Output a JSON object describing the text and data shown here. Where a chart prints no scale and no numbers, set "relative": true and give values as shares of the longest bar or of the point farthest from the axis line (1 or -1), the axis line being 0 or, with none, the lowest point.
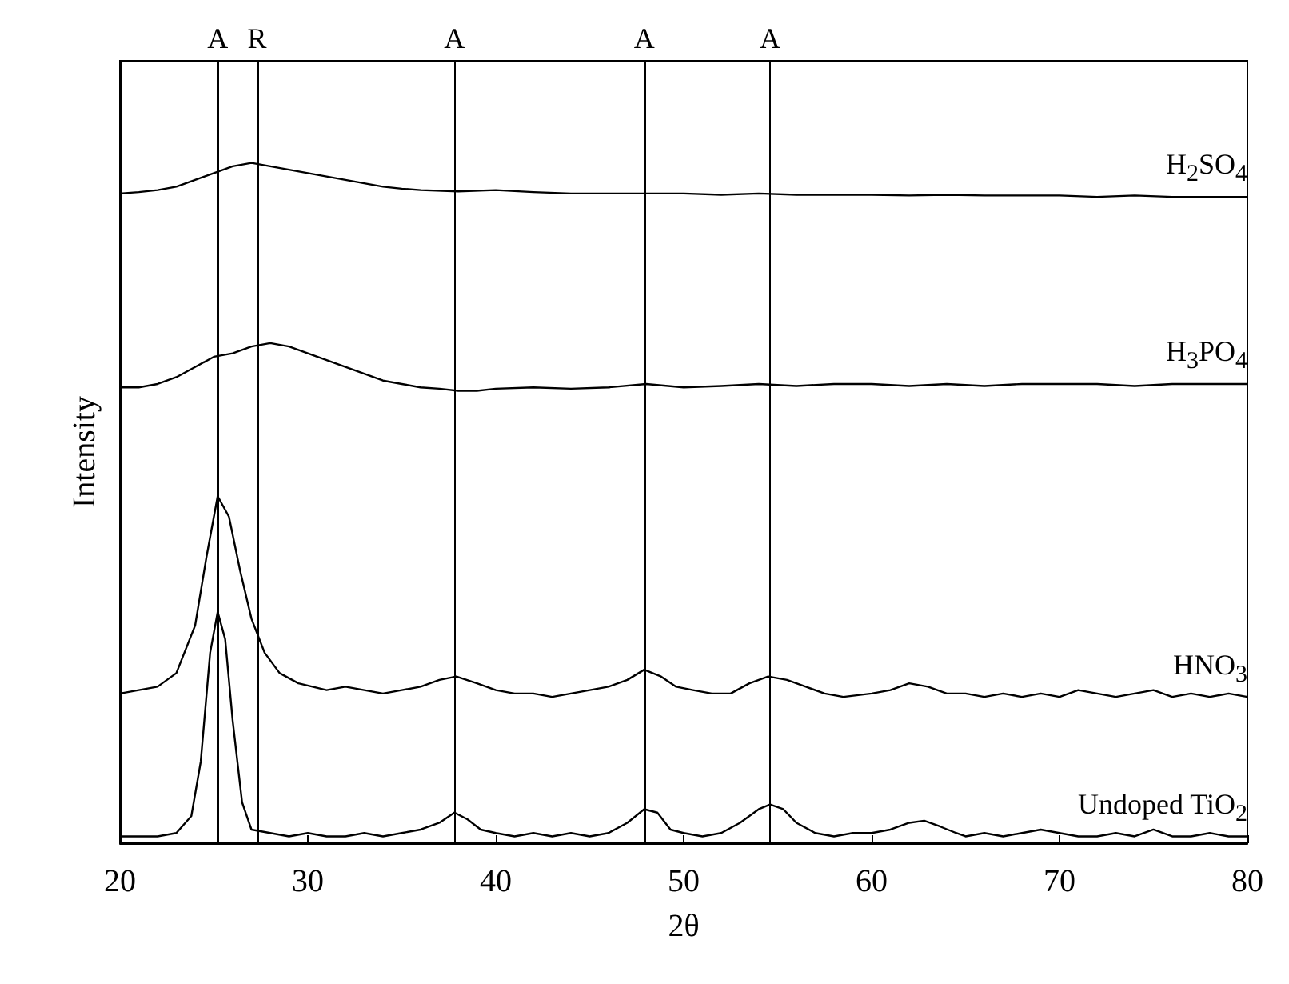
{
  "chart_data": {
    "type": "line",
    "xlabel": "2θ",
    "ylabel": "Intensity",
    "relative": true,
    "xlim": [
      20,
      80
    ],
    "xticks": [
      20,
      30,
      40,
      50,
      60,
      70,
      80
    ],
    "grid": false,
    "legend": false,
    "marker": "none",
    "line_style": "solid",
    "ref_lines": [
      {
        "axis": "x",
        "value": 25.2,
        "label": "A"
      },
      {
        "axis": "x",
        "value": 27.3,
        "label": "R"
      },
      {
        "axis": "x",
        "value": 37.8,
        "label": "A"
      },
      {
        "axis": "x",
        "value": 47.9,
        "label": "A"
      },
      {
        "axis": "x",
        "value": 54.6,
        "label": "A"
      }
    ],
    "series": [
      {
        "name": "H$_{2}$SO$_{4}$",
        "color": "#000000",
        "x": [
          20,
          21,
          22,
          23,
          24,
          25,
          26,
          27,
          28,
          29,
          30,
          31,
          32,
          33,
          34,
          35,
          36,
          38,
          40,
          42,
          44,
          46,
          48,
          50,
          52,
          54,
          56,
          58,
          60,
          62,
          64,
          66,
          68,
          70,
          72,
          74,
          76,
          78,
          80
        ],
        "values": [
          0.955,
          0.957,
          0.96,
          0.965,
          0.975,
          0.985,
          0.995,
          1.0,
          0.995,
          0.99,
          0.985,
          0.98,
          0.975,
          0.97,
          0.965,
          0.962,
          0.96,
          0.958,
          0.96,
          0.957,
          0.955,
          0.955,
          0.955,
          0.955,
          0.953,
          0.955,
          0.953,
          0.953,
          0.953,
          0.952,
          0.953,
          0.952,
          0.952,
          0.952,
          0.95,
          0.952,
          0.95,
          0.95,
          0.95
        ]
      },
      {
        "name": "H$_{3}$PO$_{4}$",
        "color": "#000000",
        "x": [
          20,
          21,
          22,
          23,
          24,
          25,
          26,
          27,
          28,
          29,
          30,
          31,
          32,
          33,
          34,
          35,
          36,
          37,
          38,
          39,
          40,
          42,
          44,
          46,
          48,
          50,
          52,
          54,
          56,
          58,
          60,
          62,
          64,
          66,
          68,
          70,
          72,
          74,
          76,
          78,
          80
        ],
        "values": [
          0.67,
          0.67,
          0.675,
          0.685,
          0.7,
          0.715,
          0.72,
          0.73,
          0.735,
          0.73,
          0.72,
          0.71,
          0.7,
          0.69,
          0.68,
          0.675,
          0.67,
          0.668,
          0.665,
          0.665,
          0.668,
          0.67,
          0.668,
          0.67,
          0.675,
          0.67,
          0.672,
          0.675,
          0.672,
          0.675,
          0.675,
          0.672,
          0.675,
          0.672,
          0.675,
          0.675,
          0.675,
          0.672,
          0.675,
          0.675,
          0.675
        ]
      },
      {
        "name": "HNO$_{3}$",
        "color": "#000000",
        "x": [
          20,
          21,
          22,
          23,
          24,
          24.6,
          25.2,
          25.8,
          26.4,
          27,
          27.7,
          28.5,
          29.5,
          31,
          32,
          33,
          34,
          35,
          36,
          37,
          37.9,
          39,
          40,
          41,
          42,
          43,
          44,
          45,
          46,
          47,
          47.9,
          48.8,
          49.6,
          50.5,
          51.5,
          52.5,
          53.5,
          54.5,
          55.5,
          56.5,
          57.5,
          58.5,
          60,
          61,
          62,
          63,
          64,
          65,
          66,
          67,
          68,
          69,
          70,
          71,
          72,
          73,
          74,
          75,
          76,
          77,
          78,
          79,
          80
        ],
        "values": [
          0.22,
          0.225,
          0.23,
          0.25,
          0.32,
          0.42,
          0.51,
          0.48,
          0.4,
          0.33,
          0.28,
          0.25,
          0.235,
          0.225,
          0.23,
          0.225,
          0.22,
          0.225,
          0.23,
          0.24,
          0.245,
          0.235,
          0.225,
          0.22,
          0.22,
          0.215,
          0.22,
          0.225,
          0.23,
          0.24,
          0.255,
          0.245,
          0.23,
          0.225,
          0.22,
          0.22,
          0.235,
          0.245,
          0.24,
          0.23,
          0.22,
          0.215,
          0.22,
          0.225,
          0.235,
          0.23,
          0.22,
          0.22,
          0.215,
          0.22,
          0.215,
          0.22,
          0.215,
          0.225,
          0.22,
          0.215,
          0.22,
          0.225,
          0.215,
          0.22,
          0.215,
          0.22,
          0.215
        ]
      },
      {
        "name": "Undoped TiO$_{2}$",
        "color": "#000000",
        "x": [
          20,
          21,
          22,
          23,
          23.8,
          24.3,
          24.8,
          25.2,
          25.6,
          26,
          26.5,
          27,
          28,
          29,
          30,
          31,
          32,
          33,
          34,
          35,
          36,
          37,
          37.8,
          38.5,
          39.2,
          40,
          41,
          42,
          43,
          44,
          45,
          46,
          47,
          47.9,
          48.6,
          49.3,
          50,
          51,
          52,
          53,
          54,
          54.6,
          55.3,
          56,
          57,
          58,
          59,
          60,
          61,
          62,
          62.8,
          63.6,
          64.5,
          65,
          66,
          67,
          68,
          69,
          70,
          71,
          72,
          73,
          74,
          75,
          76,
          77,
          78,
          79,
          80
        ],
        "values": [
          0.01,
          0.01,
          0.01,
          0.015,
          0.04,
          0.12,
          0.28,
          0.34,
          0.3,
          0.18,
          0.06,
          0.02,
          0.015,
          0.01,
          0.015,
          0.01,
          0.01,
          0.015,
          0.01,
          0.015,
          0.02,
          0.03,
          0.045,
          0.035,
          0.02,
          0.015,
          0.01,
          0.015,
          0.01,
          0.015,
          0.01,
          0.015,
          0.03,
          0.05,
          0.045,
          0.02,
          0.015,
          0.01,
          0.015,
          0.03,
          0.05,
          0.057,
          0.05,
          0.03,
          0.015,
          0.01,
          0.015,
          0.015,
          0.02,
          0.03,
          0.033,
          0.025,
          0.015,
          0.01,
          0.015,
          0.01,
          0.015,
          0.02,
          0.015,
          0.01,
          0.01,
          0.015,
          0.01,
          0.02,
          0.01,
          0.01,
          0.015,
          0.01,
          0.01
        ]
      }
    ]
  }
}
